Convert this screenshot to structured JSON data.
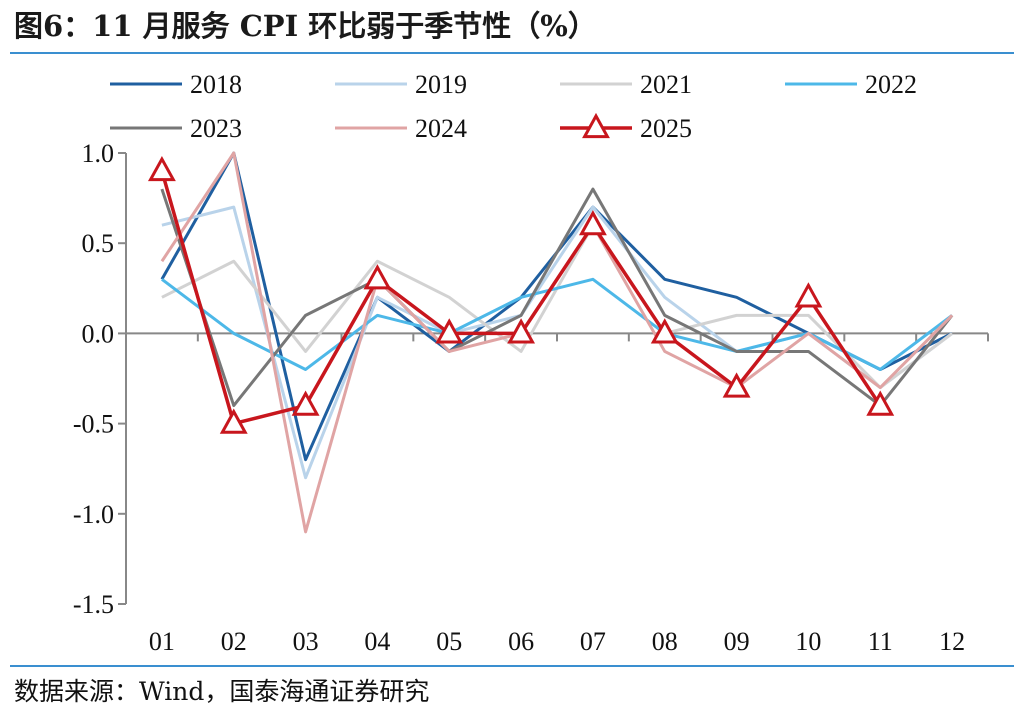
{
  "header": {
    "title": "图6：11 月服务 CPI 环比弱于季节性（%）"
  },
  "footer": {
    "source": "数据来源：Wind，国泰海通证券研究"
  },
  "chart_data": {
    "type": "line",
    "title": "图6：11 月服务 CPI 环比弱于季节性（%）",
    "xlabel": "",
    "ylabel": "",
    "categories": [
      "01",
      "02",
      "03",
      "04",
      "05",
      "06",
      "07",
      "08",
      "09",
      "10",
      "11",
      "12"
    ],
    "ylim": [
      -1.5,
      1.0
    ],
    "yticks": [
      1.0,
      0.5,
      0.0,
      -0.5,
      -1.0,
      -1.5
    ],
    "ytick_labels": [
      "1.0",
      "0.5",
      "0.0",
      "-0.5",
      "-1.0",
      "-1.5"
    ],
    "grid": false,
    "legend_position": "top",
    "series": [
      {
        "name": "2018",
        "color": "#1f5fa0",
        "values": [
          0.3,
          1.0,
          -0.7,
          0.2,
          -0.1,
          0.2,
          0.7,
          0.3,
          0.2,
          0.0,
          -0.2,
          0.0
        ]
      },
      {
        "name": "2019",
        "color": "#b9d3ea",
        "values": [
          0.6,
          0.7,
          -0.8,
          0.2,
          0.0,
          0.1,
          0.7,
          0.2,
          -0.1,
          0.0,
          -0.3,
          0.0
        ]
      },
      {
        "name": "2021",
        "color": "#d2d2d2",
        "values": [
          0.2,
          0.4,
          -0.1,
          0.4,
          0.2,
          -0.1,
          0.6,
          0.0,
          0.1,
          0.1,
          -0.3,
          0.0
        ]
      },
      {
        "name": "2022",
        "color": "#4db8e8",
        "values": [
          0.3,
          0.0,
          -0.2,
          0.1,
          0.0,
          0.2,
          0.3,
          0.0,
          -0.1,
          0.0,
          -0.2,
          0.1
        ]
      },
      {
        "name": "2023",
        "color": "#777777",
        "values": [
          0.8,
          -0.4,
          0.1,
          0.3,
          -0.1,
          0.1,
          0.8,
          0.1,
          -0.1,
          -0.1,
          -0.4,
          0.1
        ]
      },
      {
        "name": "2024",
        "color": "#e0a4a4",
        "values": [
          0.4,
          1.0,
          -1.1,
          0.3,
          -0.1,
          0.0,
          0.6,
          -0.1,
          -0.3,
          0.0,
          -0.3,
          0.1
        ]
      },
      {
        "name": "2025",
        "color": "#c8161d",
        "marker": "triangle",
        "values": [
          0.9,
          -0.5,
          -0.4,
          0.3,
          0.0,
          0.0,
          0.6,
          0.0,
          -0.3,
          0.2,
          -0.4,
          null
        ]
      }
    ]
  }
}
